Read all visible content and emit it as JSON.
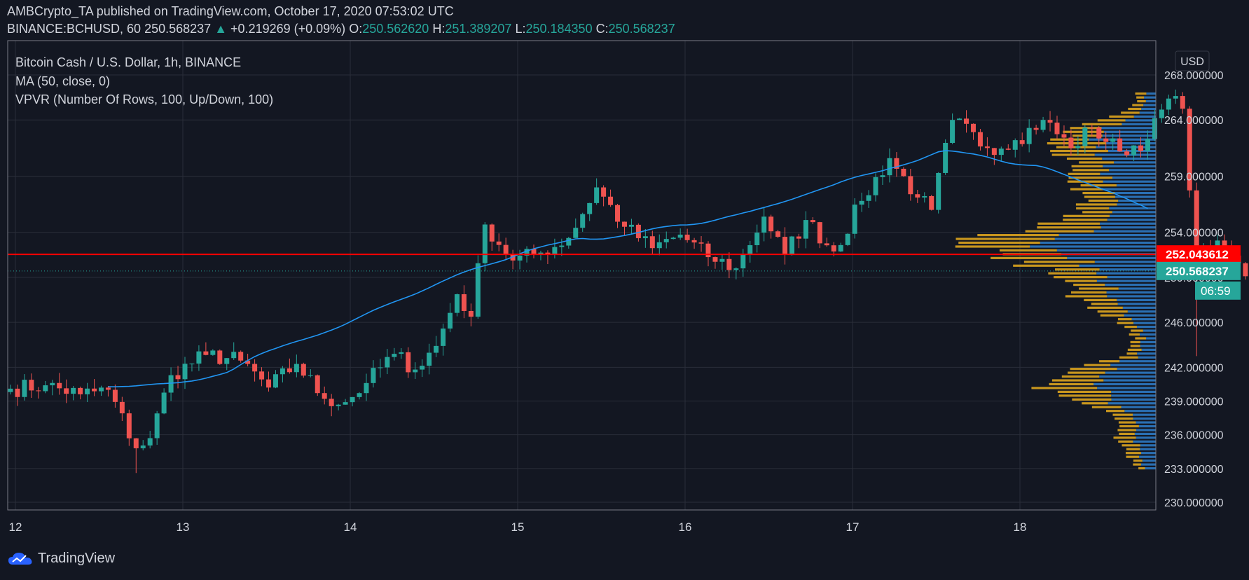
{
  "header": {
    "line1": "AMBCrypto_TA published on TradingView.com, October 17, 2020 07:53:02 UTC",
    "symbol": "BINANCE:BCHUSD, 60",
    "price": "250.568237",
    "change_arrow": "▲",
    "change": "+0.219269 (+0.09%)",
    "o_label": "O:",
    "o_val": "250.562620",
    "h_label": "H:",
    "h_val": "251.389207",
    "l_label": "L:",
    "l_val": "250.184350",
    "c_label": "C:",
    "c_val": "250.568237"
  },
  "legend": {
    "title": "Bitcoin Cash / U.S. Dollar, 1h, BINANCE",
    "ma": "MA (50, close, 0)",
    "vpvr": "VPVR (Number Of Rows, 100, Up/Down, 100)"
  },
  "currency_button": "USD",
  "footer": {
    "brand": "TradingView"
  },
  "colors": {
    "background": "#131722",
    "up": "#26a69a",
    "down": "#ef5350",
    "ma": "#2196f3",
    "vp_up": "#2a6fb3",
    "vp_down": "#c8961e",
    "poc_line": "#ff0000"
  },
  "chart_data": {
    "type": "candlestick",
    "ylim": [
      230,
      268
    ],
    "y_ticks": [
      "230.000000",
      "233.000000",
      "236.000000",
      "239.000000",
      "242.000000",
      "246.000000",
      "250.000000",
      "254.000000",
      "259.000000",
      "264.000000",
      "268.000000"
    ],
    "x_ticks": [
      "12",
      "13",
      "14",
      "15",
      "16",
      "17",
      "18"
    ],
    "price_labels": [
      {
        "value": 252.043612,
        "text": "252.043612",
        "color": "#ff0000"
      },
      {
        "value": 250.568237,
        "text": "250.568237",
        "color": "#26a69a"
      }
    ],
    "countdown": "06:59",
    "anchor_closes": [
      [
        0,
        240.1
      ],
      [
        5,
        240.4
      ],
      [
        10,
        239.6
      ],
      [
        14,
        240.0
      ],
      [
        18,
        234.8
      ],
      [
        20,
        235.7
      ],
      [
        23,
        241.3
      ],
      [
        28,
        243.1
      ],
      [
        33,
        242.6
      ],
      [
        37,
        240.2
      ],
      [
        41,
        242.3
      ],
      [
        45,
        239.2
      ],
      [
        48,
        238.9
      ],
      [
        51,
        240.6
      ],
      [
        55,
        243.2
      ],
      [
        58,
        241.8
      ],
      [
        61,
        243.9
      ],
      [
        64,
        248.5
      ],
      [
        66,
        246.5
      ],
      [
        68,
        254.7
      ],
      [
        72,
        251.5
      ],
      [
        76,
        252.2
      ],
      [
        80,
        253.5
      ],
      [
        84,
        258.0
      ],
      [
        88,
        254.5
      ],
      [
        92,
        252.6
      ],
      [
        96,
        253.8
      ],
      [
        100,
        251.8
      ],
      [
        104,
        250.8
      ],
      [
        108,
        255.4
      ],
      [
        111,
        252.0
      ],
      [
        114,
        255.1
      ],
      [
        118,
        252.3
      ],
      [
        122,
        256.8
      ],
      [
        126,
        260.6
      ],
      [
        130,
        257.1
      ],
      [
        132,
        256.0
      ],
      [
        135,
        264.0
      ],
      [
        140,
        261.5
      ],
      [
        144,
        262.2
      ],
      [
        148,
        264.0
      ],
      [
        152,
        261.5
      ],
      [
        155,
        263.3
      ],
      [
        159,
        261.2
      ],
      [
        163,
        262.3
      ],
      [
        166,
        265.9
      ],
      [
        168,
        265.0
      ],
      [
        170,
        252.0
      ],
      [
        174,
        252.7
      ],
      [
        177,
        250.1
      ],
      [
        181,
        255.6
      ],
      [
        184,
        252.5
      ],
      [
        188,
        250.7
      ],
      [
        192,
        249.8
      ],
      [
        196,
        248.5
      ],
      [
        200,
        250.9
      ],
      [
        204,
        249.8
      ],
      [
        207,
        251.4
      ],
      [
        210,
        250.6
      ],
      [
        212,
        250.57
      ]
    ],
    "ma_period": 50,
    "vpvr_rows": 100
  }
}
